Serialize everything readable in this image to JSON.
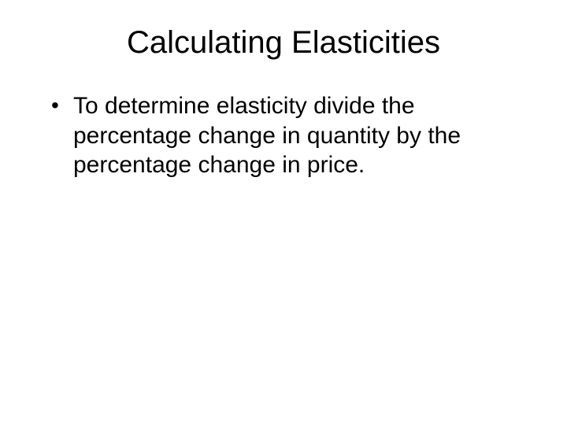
{
  "slide": {
    "title": "Calculating Elasticities",
    "title_fontsize": 40,
    "title_align": "center",
    "body_fontsize": 30,
    "text_color": "#000000",
    "background_color": "#ffffff",
    "font_family": "Comic Sans MS",
    "bullets": [
      {
        "text": "To determine elasticity divide the percentage change in quantity by the percentage change in price."
      }
    ]
  }
}
